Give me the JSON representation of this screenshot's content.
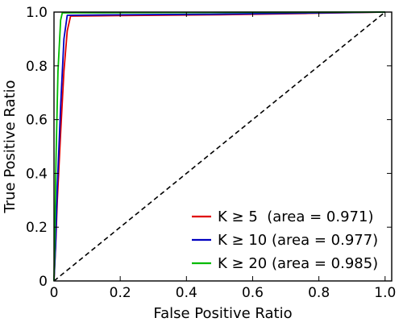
{
  "chart_data": {
    "type": "line",
    "title": "",
    "xlabel": "False Positive Ratio",
    "ylabel": "True Positive Ratio",
    "xlim": [
      0,
      1.02
    ],
    "ylim": [
      0,
      1.0
    ],
    "x_ticks": [
      0,
      0.2,
      0.4,
      0.6,
      0.8,
      1.0
    ],
    "x_tick_labels": [
      "0",
      "0.2",
      "0.4",
      "0.6",
      "0.8",
      "1.0"
    ],
    "y_ticks": [
      0,
      0.2,
      0.4,
      0.6,
      0.8,
      1.0
    ],
    "y_tick_labels": [
      "0",
      "0.2",
      "0.4",
      "0.6",
      "0.8",
      "1.0"
    ],
    "grid": false,
    "legend_position": "lower-right",
    "series": [
      {
        "name": "K ≥ 5  (area = 0.971)",
        "color": "#e00000",
        "x": [
          0,
          0.005,
          0.01,
          0.02,
          0.03,
          0.04,
          0.05,
          0.2,
          0.5,
          0.76,
          1.0
        ],
        "y": [
          0,
          0.13,
          0.3,
          0.55,
          0.78,
          0.93,
          0.985,
          0.987,
          0.99,
          0.995,
          1.0
        ]
      },
      {
        "name": "K ≥ 10 (area = 0.977)",
        "color": "#0000c0",
        "x": [
          0,
          0.005,
          0.01,
          0.02,
          0.03,
          0.04,
          0.2,
          0.47,
          1.0
        ],
        "y": [
          0,
          0.14,
          0.35,
          0.65,
          0.9,
          0.988,
          0.99,
          0.992,
          1.0
        ]
      },
      {
        "name": "K ≥ 20 (area = 0.985)",
        "color": "#00bb00",
        "x": [
          0,
          0.003,
          0.006,
          0.012,
          0.02,
          0.025,
          0.22,
          0.56,
          1.0
        ],
        "y": [
          0,
          0.2,
          0.45,
          0.78,
          0.97,
          0.997,
          0.998,
          0.999,
          1.0
        ]
      },
      {
        "name": "",
        "color": "#000000",
        "dashed": true,
        "x": [
          0,
          1.0
        ],
        "y": [
          0,
          1.0
        ]
      }
    ]
  }
}
